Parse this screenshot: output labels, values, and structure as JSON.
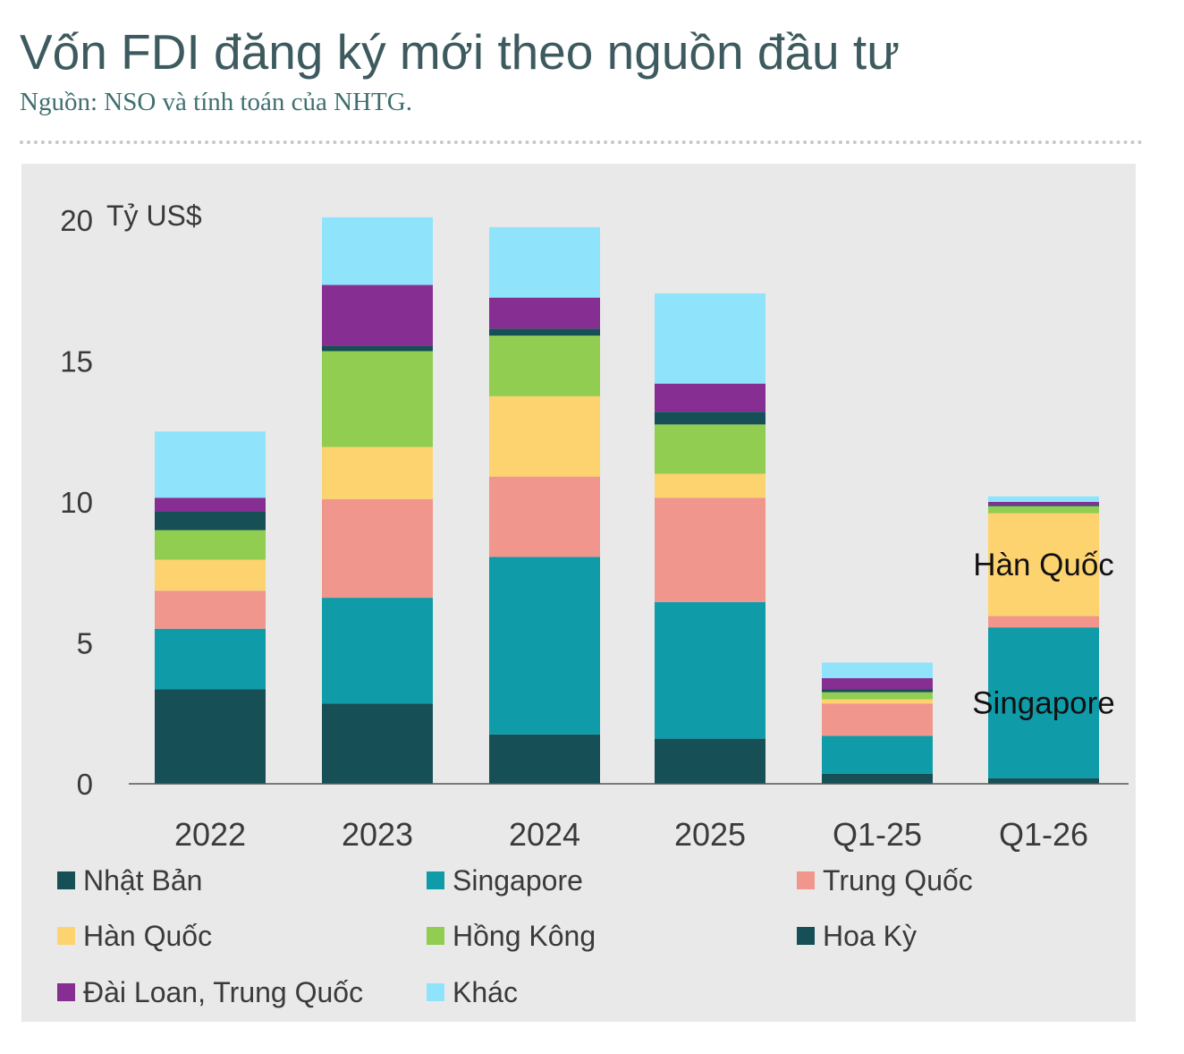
{
  "header": {
    "title": "Vốn FDI đăng ký mới theo nguồn đầu tư",
    "subtitle": "Nguồn: NSO và tính toán của NHTG."
  },
  "chart_data": {
    "type": "bar",
    "stacked": true,
    "ylabel": "Tỷ US$",
    "ylim": [
      0,
      20
    ],
    "yticks": [
      0,
      5,
      10,
      15,
      20
    ],
    "categories": [
      "2022",
      "2023",
      "2024",
      "2025",
      "Q1-25",
      "Q1-26"
    ],
    "series": [
      {
        "name": "Nhật Bản",
        "color": "#174f56",
        "values": [
          3.35,
          2.85,
          1.75,
          1.6,
          0.35,
          0.2
        ]
      },
      {
        "name": "Singapore",
        "color": "#0f9ba8",
        "values": [
          2.15,
          3.75,
          6.3,
          4.85,
          1.35,
          5.35
        ]
      },
      {
        "name": "Trung Quốc",
        "color": "#f0968c",
        "values": [
          1.35,
          3.5,
          2.85,
          3.7,
          1.15,
          0.4
        ]
      },
      {
        "name": "Hàn Quốc",
        "color": "#fdd36f",
        "values": [
          1.1,
          1.85,
          2.85,
          0.85,
          0.15,
          3.65
        ]
      },
      {
        "name": "Hồng Kông",
        "color": "#91cd51",
        "values": [
          1.05,
          3.4,
          2.15,
          1.75,
          0.25,
          0.25
        ]
      },
      {
        "name": "Hoa Kỳ",
        "color": "#174f56",
        "values": [
          0.65,
          0.2,
          0.25,
          0.45,
          0.1,
          0.05
        ]
      },
      {
        "name": "Đài Loan, Trung Quốc",
        "color": "#862e92",
        "values": [
          0.5,
          2.15,
          1.1,
          1.0,
          0.4,
          0.1
        ]
      },
      {
        "name": "Khác",
        "color": "#8fe4fc",
        "values": [
          2.35,
          2.4,
          2.5,
          3.2,
          0.55,
          0.2
        ]
      }
    ],
    "annotations": [
      {
        "text": "Hàn Quốc",
        "category": "Q1-26",
        "series": "Hàn Quốc"
      },
      {
        "text": "Singapore",
        "category": "Q1-26",
        "series": "Singapore"
      }
    ],
    "grid": false,
    "legend": "bottom"
  }
}
